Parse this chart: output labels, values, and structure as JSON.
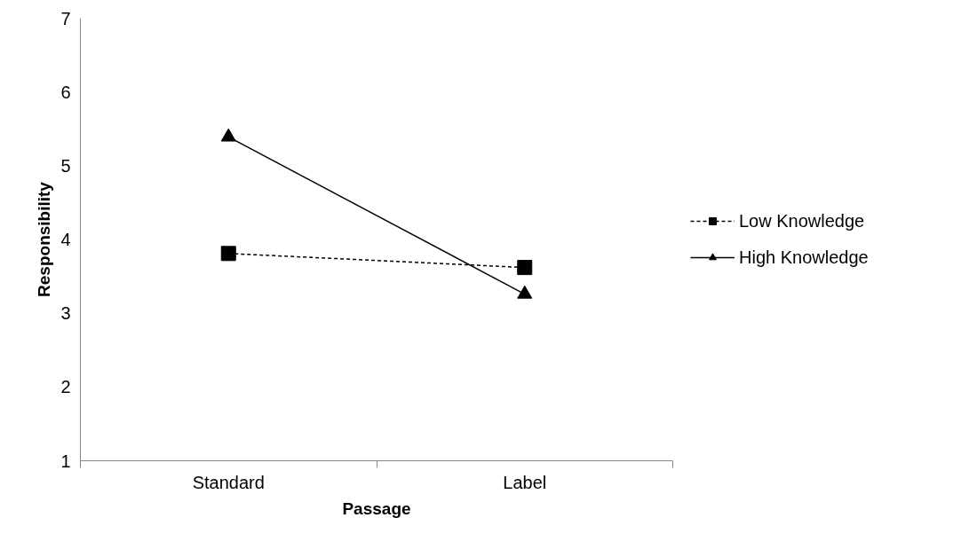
{
  "chart_data": {
    "type": "line",
    "xlabel": "Passage",
    "ylabel": "Responsibility",
    "categories": [
      "Standard",
      "Label"
    ],
    "ylim": [
      1,
      7
    ],
    "yticks": [
      1,
      2,
      3,
      4,
      5,
      6,
      7
    ],
    "grid": false,
    "legend": "right",
    "series": [
      {
        "name": "Low Knowledge",
        "color": "#000000",
        "marker": "square",
        "line_style": "dashed",
        "values": [
          3.81,
          3.62
        ]
      },
      {
        "name": "High Knowledge",
        "color": "#000000",
        "marker": "triangle",
        "line_style": "solid",
        "values": [
          5.39,
          3.26
        ]
      }
    ]
  }
}
